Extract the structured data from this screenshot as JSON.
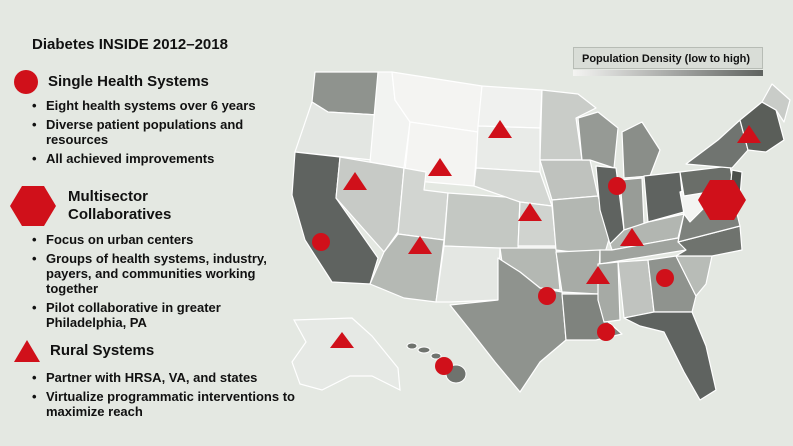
{
  "title": "Diabetes INSIDE 2012–2018",
  "legend_label": "Population Density  (low to high)",
  "colors": {
    "marker_red": "#d0101a",
    "density_low": "#f4f4f2",
    "density_high": "#5f6360"
  },
  "sections": [
    {
      "id": "single-health-systems",
      "symbol": "circle",
      "heading": "Single Health Systems",
      "bullets": [
        "Eight health systems over 6 years",
        "Diverse patient populations and resources",
        "All achieved improvements"
      ]
    },
    {
      "id": "multisector-collaboratives",
      "symbol": "hexagon",
      "heading_line1": "Multisector",
      "heading_line2": "Collaboratives",
      "bullets": [
        "Focus on urban centers",
        "Groups of health systems, industry, payers, and communities working together",
        "Pilot collaborative in greater Philadelphia, PA"
      ]
    },
    {
      "id": "rural-systems",
      "symbol": "triangle",
      "heading": "Rural Systems",
      "bullets": [
        "Partner with HRSA, VA, and states",
        "Virtualize programmatic interventions to maximize reach"
      ]
    }
  ],
  "markers": {
    "circles": [
      "California",
      "Texas",
      "Louisiana",
      "Georgia",
      "Illinois",
      "Hawaii"
    ],
    "triangles": [
      "Alaska",
      "Idaho",
      "Wyoming",
      "South Dakota",
      "New Mexico",
      "Kansas",
      "Mississippi",
      "Kentucky",
      "Vermont"
    ],
    "hexagons": [
      "Pennsylvania"
    ]
  }
}
